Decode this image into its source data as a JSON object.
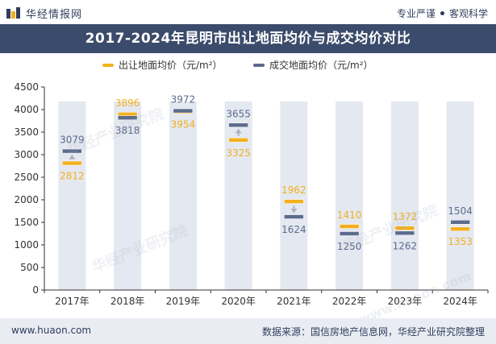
{
  "header": {
    "brand": "华经情报网",
    "tagline_left": "专业严谨",
    "tagline_right": "客观科学"
  },
  "footer": {
    "website": "www.huaon.com",
    "source": "数据来源：国信房地产信息网，华经产业研究院整理"
  },
  "watermarks": [
    "华经产业研究院",
    "华经产业研究院",
    "华经产业研究院",
    "www.huaon.com"
  ],
  "colors": {
    "outgoing": "#f2b01e",
    "deal": "#5b6b8c",
    "title_bg": "#3b4b6b",
    "bar_bg": "#e4e8f0"
  },
  "chart_data": {
    "type": "line",
    "title": "2017-2024年昆明市出让地面均价与成交均价对比",
    "xlabel": "",
    "ylabel": "",
    "ylim": [
      0,
      4500
    ],
    "yticks": [
      0,
      500,
      1000,
      1500,
      2000,
      2500,
      3000,
      3500,
      4000,
      4500
    ],
    "categories": [
      "2017年",
      "2018年",
      "2019年",
      "2020年",
      "2021年",
      "2022年",
      "2023年",
      "2024年"
    ],
    "legend_position": "top",
    "series": [
      {
        "name": "出让地面均价（元/m²）",
        "values": [
          2812,
          3896,
          3954,
          3325,
          1962,
          1410,
          1372,
          1353
        ]
      },
      {
        "name": "成交地面均价（元/m²）",
        "values": [
          3079,
          3818,
          3972,
          3655,
          1624,
          1250,
          1262,
          1504
        ]
      }
    ]
  }
}
